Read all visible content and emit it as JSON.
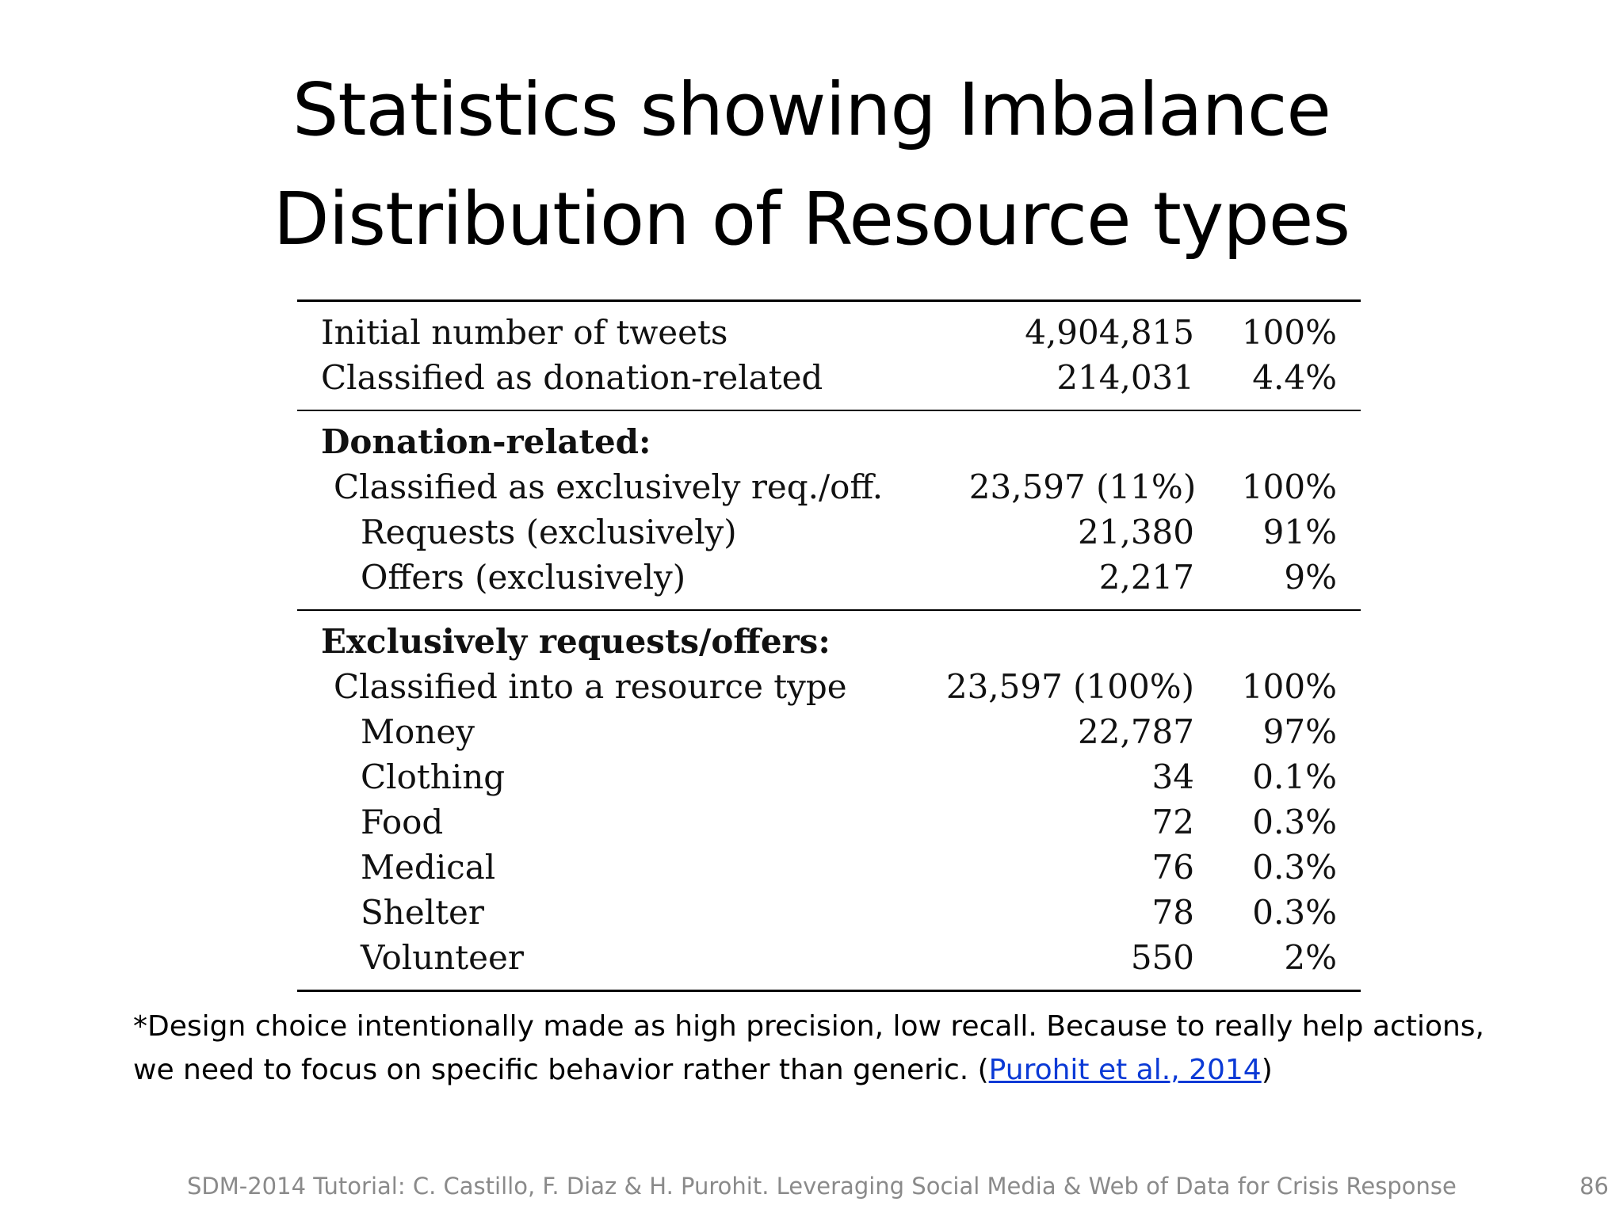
{
  "title": {
    "line1": "Statistics showing Imbalance",
    "line2": "Distribution of Resource types"
  },
  "table": {
    "top": [
      {
        "label": "Initial number of tweets",
        "count": "4,904,815",
        "pct": "100%"
      },
      {
        "label": "Classified as donation-related",
        "count": "214,031",
        "pct": "4.4%"
      }
    ],
    "donation": {
      "heading": "Donation-related:",
      "rows": [
        {
          "label": "Classified as exclusively req./off.",
          "count": "23,597 (11%)",
          "pct": "100%"
        },
        {
          "label": "Requests (exclusively)",
          "count": "21,380",
          "pct": "91%"
        },
        {
          "label": "Offers (exclusively)",
          "count": "2,217",
          "pct": "9%"
        }
      ]
    },
    "exclusive": {
      "heading": "Exclusively requests/offers:",
      "rows": [
        {
          "label": "Classified into a resource type",
          "count": "23,597 (100%)",
          "pct": "100%"
        },
        {
          "label": "Money",
          "count": "22,787",
          "pct": "97%"
        },
        {
          "label": "Clothing",
          "count": "34",
          "pct": "0.1%"
        },
        {
          "label": "Food",
          "count": "72",
          "pct": "0.3%"
        },
        {
          "label": "Medical",
          "count": "76",
          "pct": "0.3%"
        },
        {
          "label": "Shelter",
          "count": "78",
          "pct": "0.3%"
        },
        {
          "label": "Volunteer",
          "count": "550",
          "pct": "2%"
        }
      ]
    }
  },
  "footnote": {
    "line1": "*Design choice intentionally made as high precision, low recall. Because to really help actions,",
    "line2_prefix": "we need to focus on specific behavior rather than generic. (",
    "link_text": "Purohit et al., 2014",
    "line2_suffix": ")"
  },
  "footer": {
    "text": "SDM-2014 Tutorial: C. Castillo, F. Diaz & H. Purohit. Leveraging Social Media & Web of Data for Crisis Response",
    "page_number": "86"
  }
}
